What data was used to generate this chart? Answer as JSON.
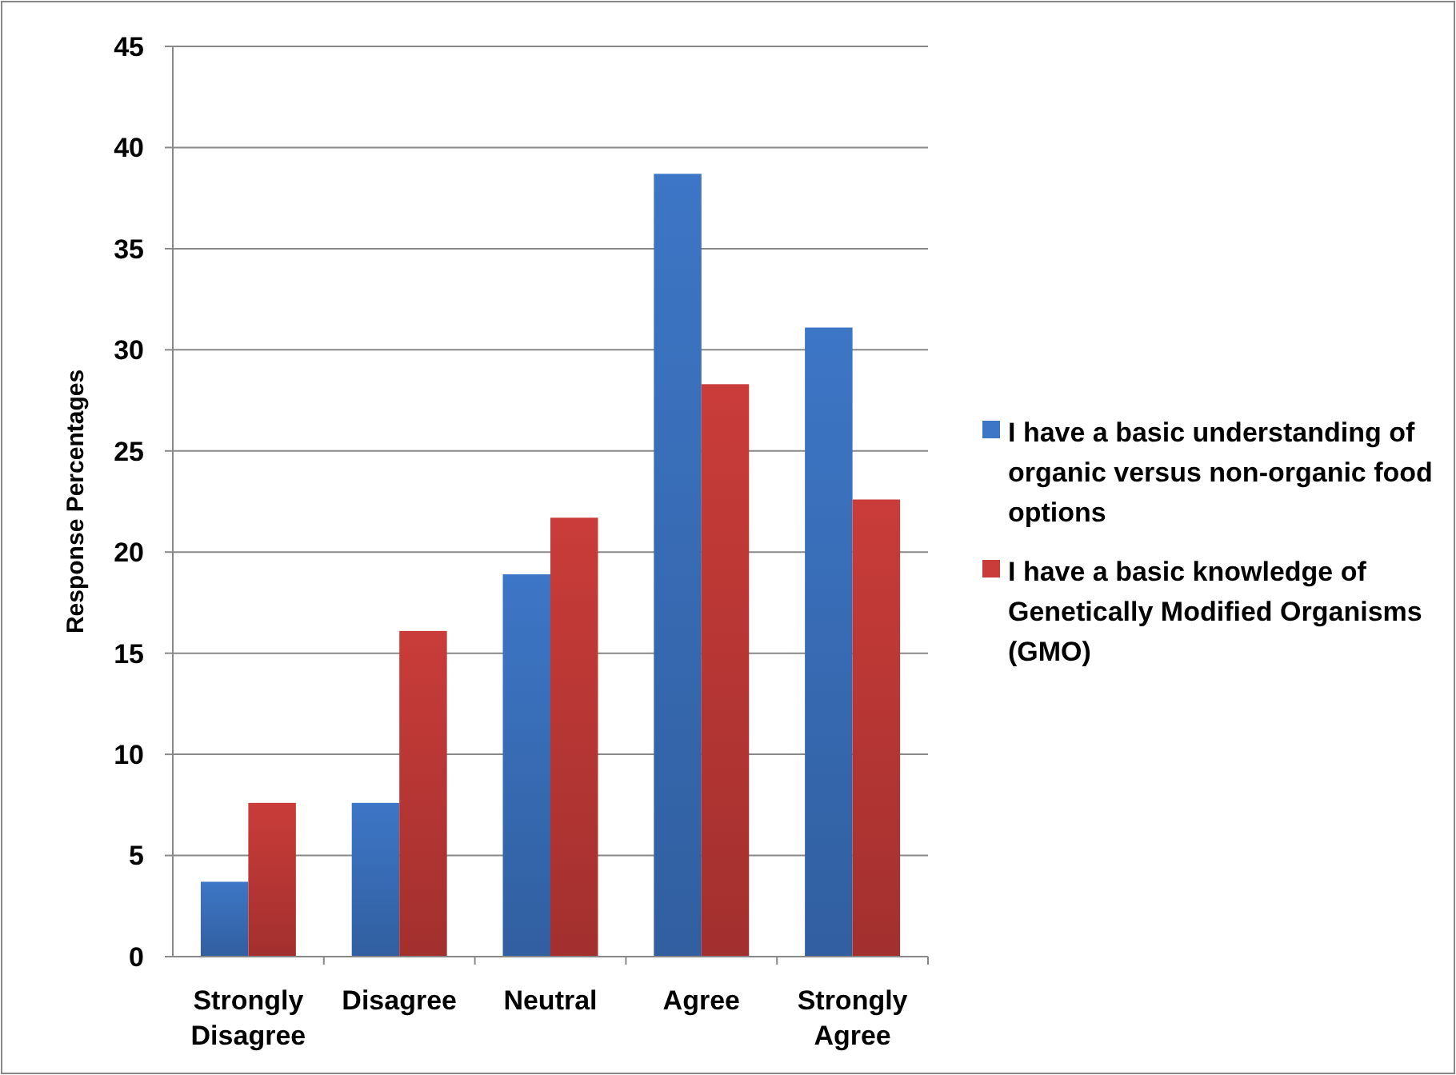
{
  "chart_data": {
    "type": "bar",
    "ylabel": "Response Percentages",
    "categories": [
      "Strongly Disagree",
      "Disagree",
      "Neutral",
      "Agree",
      "Strongly Agree"
    ],
    "series": [
      {
        "name": "I have a basic understanding of organic versus non-organic food options",
        "color": "#3d76c6",
        "values": [
          3.7,
          7.6,
          18.9,
          38.7,
          31.1
        ]
      },
      {
        "name": "I have a basic knowledge of Genetically Modified Organisms (GMO)",
        "color": "#c93c39",
        "values": [
          7.6,
          16.1,
          21.7,
          28.3,
          22.6
        ]
      }
    ],
    "ylim": [
      0,
      45
    ],
    "yticks": [
      0,
      5,
      10,
      15,
      20,
      25,
      30,
      35,
      40,
      45
    ],
    "grid": "y",
    "legend": "right"
  }
}
